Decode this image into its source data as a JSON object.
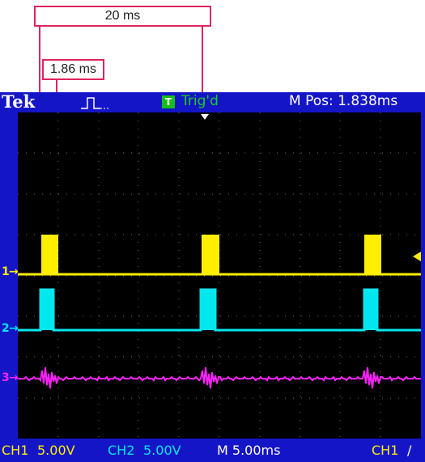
{
  "annotations": {
    "period_label": "20 ms",
    "pulse_width_label": "1.86 ms"
  },
  "scope": {
    "brand": "Tek",
    "trigger_icon": "rising-edge-pulse-icon",
    "trigger_badge": "T",
    "trigger_status": "Trig'd",
    "m_pos": "M Pos: 1.838ms",
    "markers": {
      "ch1": "1",
      "ch2": "2",
      "ch3": "3"
    },
    "bottom": {
      "ch1_label": "CH1",
      "ch1_scale": "5.00V",
      "ch2_label": "CH2",
      "ch2_scale": "5.00V",
      "timebase": "M 5.00ms",
      "trigger_source": "CH1",
      "trigger_slope": "/"
    },
    "colors": {
      "background": "#000000",
      "frame": "#1515c8",
      "ch1": "#ffee00",
      "ch2": "#00e8ee",
      "ch3": "#ff22ff",
      "grid": "#6b6b6b",
      "annotation": "#e0245e"
    }
  }
}
